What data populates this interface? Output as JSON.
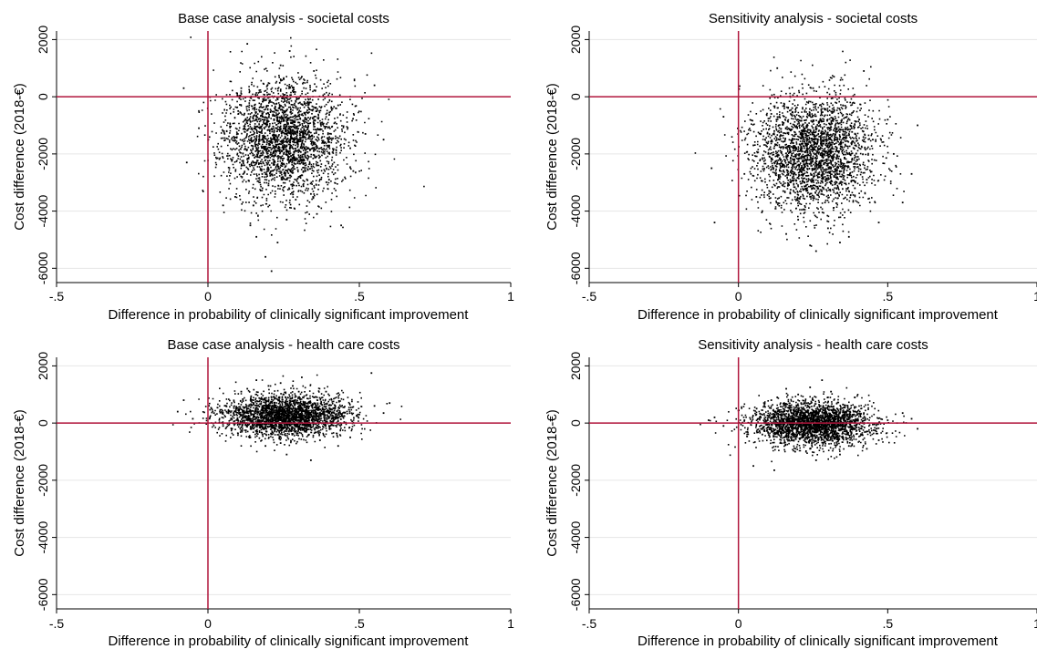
{
  "figure": {
    "panels": [
      {
        "id": "base-societal",
        "title": "Base case analysis - societal costs",
        "xlabel": "Difference in probability of clinically significant improvement",
        "ylabel": "Cost difference (2018-€)",
        "x_ticks": [
          -0.5,
          0,
          0.5,
          1
        ],
        "x_tick_labels": [
          "-.5",
          "0",
          ".5",
          "1"
        ],
        "y_ticks": [
          2000,
          0,
          -2000,
          -4000,
          -6000
        ],
        "y_tick_labels": [
          "2000",
          "0",
          "-2000",
          "-4000",
          "-6000"
        ]
      },
      {
        "id": "sens-societal",
        "title": "Sensitivity analysis - societal costs",
        "xlabel": "Difference in probability of clinically significant improvement",
        "ylabel": "Cost difference (2018-€)",
        "x_ticks": [
          -0.5,
          0,
          0.5,
          1
        ],
        "x_tick_labels": [
          "-.5",
          "0",
          ".5",
          "1"
        ],
        "y_ticks": [
          2000,
          0,
          -2000,
          -4000,
          -6000
        ],
        "y_tick_labels": [
          "2000",
          "0",
          "-2000",
          "-4000",
          "-6000"
        ]
      },
      {
        "id": "base-health",
        "title": "Base case analysis - health care costs",
        "xlabel": "Difference in probability of clinically significant improvement",
        "ylabel": "Cost difference (2018-€)",
        "x_ticks": [
          -0.5,
          0,
          0.5,
          1
        ],
        "x_tick_labels": [
          "-.5",
          "0",
          ".5",
          "1"
        ],
        "y_ticks": [
          2000,
          0,
          -2000,
          -4000,
          -6000
        ],
        "y_tick_labels": [
          "2000",
          "0",
          "-2000",
          "-4000",
          "-6000"
        ]
      },
      {
        "id": "sens-health",
        "title": "Sensitivity analysis - health care costs",
        "xlabel": "Difference in probability of clinically significant improvement",
        "ylabel": "Cost difference (2018-€)",
        "x_ticks": [
          -0.5,
          0,
          0.5,
          1
        ],
        "x_tick_labels": [
          "-.5",
          "0",
          ".5",
          "1"
        ],
        "y_ticks": [
          2000,
          0,
          -2000,
          -4000,
          -6000
        ],
        "y_tick_labels": [
          "2000",
          "0",
          "-2000",
          "-4000",
          "-6000"
        ]
      }
    ]
  },
  "colors": {
    "points": "#000000",
    "reference_lines": "#b0163c",
    "grid": "#e6e6e6",
    "axis": "#000000"
  },
  "chart_data": [
    {
      "type": "scatter",
      "title": "Base case analysis - societal costs",
      "xlabel": "Difference in probability of clinically significant improvement",
      "ylabel": "Cost difference (2018-€)",
      "xlim": [
        -0.5,
        1
      ],
      "ylim": [
        -6500,
        2300
      ],
      "grid": true,
      "reference_lines": {
        "x": 0,
        "y": 0
      },
      "points": [
        [
          0.05,
          -1200
        ],
        [
          0.17,
          -1400
        ],
        [
          0.18,
          -700
        ],
        [
          0.25,
          -1800
        ],
        [
          0.27,
          -2000
        ],
        [
          0.29,
          -1300
        ],
        [
          0.12,
          -2400
        ],
        [
          0.32,
          -2600
        ],
        [
          0.38,
          -1600
        ],
        [
          0.2,
          -3100
        ],
        [
          0.34,
          -3400
        ],
        [
          0.22,
          -400
        ],
        [
          0.28,
          200
        ],
        [
          0.15,
          -3800
        ],
        [
          0.42,
          -900
        ],
        [
          0.08,
          -2200
        ],
        [
          0.47,
          -1800
        ],
        [
          -0.03,
          -1100
        ],
        [
          0.26,
          -4300
        ],
        [
          0.36,
          -4100
        ],
        [
          0.14,
          -4500
        ],
        [
          0.11,
          300
        ],
        [
          0.31,
          700
        ],
        [
          0.52,
          -1300
        ],
        [
          0.4,
          -2900
        ],
        [
          0.23,
          -5100
        ],
        [
          0.19,
          -5600
        ],
        [
          0.21,
          -6100
        ],
        [
          0.27,
          1600
        ],
        [
          0.13,
          1850
        ],
        [
          0.05,
          -3800
        ],
        [
          -0.08,
          300
        ],
        [
          -0.07,
          -2300
        ],
        [
          0.55,
          400
        ],
        [
          0.58,
          -1500
        ],
        [
          0.44,
          -4500
        ],
        [
          0.16,
          -4900
        ],
        [
          0.09,
          -3500
        ],
        [
          0.35,
          900
        ],
        [
          0.24,
          1100
        ],
        [
          0.3,
          -2800
        ],
        [
          0.33,
          -200
        ],
        [
          0.1,
          -500
        ],
        [
          0.37,
          -2100
        ],
        [
          0.2,
          -2500
        ],
        [
          0.26,
          -700
        ],
        [
          0.29,
          -3600
        ],
        [
          0.18,
          -3200
        ],
        [
          0.43,
          -300
        ],
        [
          0.48,
          -2600
        ]
      ]
    },
    {
      "type": "scatter",
      "title": "Sensitivity analysis - societal costs",
      "xlabel": "Difference in probability of clinically significant improvement",
      "ylabel": "Cost difference (2018-€)",
      "xlim": [
        -0.5,
        1
      ],
      "ylim": [
        -6500,
        2300
      ],
      "grid": true,
      "reference_lines": {
        "x": 0,
        "y": 0
      },
      "points": [
        [
          0.23,
          -1800
        ],
        [
          0.26,
          -2000
        ],
        [
          0.2,
          -1500
        ],
        [
          0.3,
          -1700
        ],
        [
          0.17,
          -2300
        ],
        [
          0.33,
          -2600
        ],
        [
          0.12,
          -1200
        ],
        [
          0.36,
          -1400
        ],
        [
          0.27,
          -900
        ],
        [
          0.22,
          -3000
        ],
        [
          0.4,
          -2100
        ],
        [
          0.15,
          -3300
        ],
        [
          0.29,
          -3700
        ],
        [
          0.1,
          -2000
        ],
        [
          0.45,
          -1500
        ],
        [
          0.35,
          -300
        ],
        [
          0.18,
          -400
        ],
        [
          0.25,
          300
        ],
        [
          0.32,
          700
        ],
        [
          0.42,
          900
        ],
        [
          0.13,
          1000
        ],
        [
          0.2,
          -4300
        ],
        [
          0.3,
          -4600
        ],
        [
          0.24,
          -5200
        ],
        [
          0.37,
          -4900
        ],
        [
          0.06,
          -3500
        ],
        [
          0.02,
          -2700
        ],
        [
          -0.05,
          -700
        ],
        [
          -0.08,
          -4400
        ],
        [
          -0.09,
          -2500
        ],
        [
          0.5,
          -800
        ],
        [
          0.55,
          -3700
        ],
        [
          0.58,
          -2700
        ],
        [
          0.6,
          -1000
        ],
        [
          0.47,
          -4400
        ],
        [
          0.08,
          -4000
        ],
        [
          0.16,
          -4800
        ],
        [
          0.26,
          -5400
        ],
        [
          0.34,
          -5100
        ],
        [
          0.21,
          -2600
        ],
        [
          0.28,
          -1300
        ],
        [
          0.19,
          -700
        ],
        [
          0.39,
          -3200
        ],
        [
          0.14,
          -2800
        ],
        [
          0.31,
          -2300
        ],
        [
          0.24,
          -3500
        ],
        [
          0.43,
          -2900
        ],
        [
          0.11,
          -600
        ],
        [
          0.05,
          -1700
        ],
        [
          0.52,
          -2000
        ]
      ]
    },
    {
      "type": "scatter",
      "title": "Base case analysis - health care costs",
      "xlabel": "Difference in probability of clinically significant improvement",
      "ylabel": "Cost difference (2018-€)",
      "xlim": [
        -0.5,
        1
      ],
      "ylim": [
        -6500,
        2300
      ],
      "grid": true,
      "reference_lines": {
        "x": 0,
        "y": 0
      },
      "points": [
        [
          0.23,
          300
        ],
        [
          0.26,
          200
        ],
        [
          0.2,
          500
        ],
        [
          0.3,
          400
        ],
        [
          0.17,
          100
        ],
        [
          0.33,
          600
        ],
        [
          0.12,
          250
        ],
        [
          0.36,
          150
        ],
        [
          0.27,
          700
        ],
        [
          0.22,
          -200
        ],
        [
          0.4,
          350
        ],
        [
          0.15,
          800
        ],
        [
          0.29,
          -100
        ],
        [
          0.1,
          450
        ],
        [
          0.45,
          250
        ],
        [
          0.35,
          900
        ],
        [
          0.18,
          -400
        ],
        [
          0.25,
          1000
        ],
        [
          0.32,
          -300
        ],
        [
          0.42,
          550
        ],
        [
          0.13,
          1200
        ],
        [
          0.2,
          1300
        ],
        [
          0.3,
          1100
        ],
        [
          0.24,
          -700
        ],
        [
          0.37,
          -600
        ],
        [
          0.06,
          600
        ],
        [
          0.02,
          350
        ],
        [
          -0.05,
          150
        ],
        [
          -0.08,
          800
        ],
        [
          -0.1,
          400
        ],
        [
          0.5,
          300
        ],
        [
          0.55,
          600
        ],
        [
          0.58,
          350
        ],
        [
          0.6,
          700
        ],
        [
          0.47,
          -500
        ],
        [
          0.08,
          -200
        ],
        [
          0.16,
          1500
        ],
        [
          0.26,
          -1100
        ],
        [
          0.34,
          -1300
        ],
        [
          0.21,
          900
        ],
        [
          0.28,
          1300
        ],
        [
          0.19,
          -800
        ],
        [
          0.39,
          1100
        ],
        [
          0.14,
          -500
        ],
        [
          0.31,
          1600
        ],
        [
          0.24,
          1400
        ],
        [
          0.43,
          -800
        ],
        [
          0.11,
          1100
        ],
        [
          0.05,
          -100
        ],
        [
          0.54,
          1750
        ]
      ]
    },
    {
      "type": "scatter",
      "title": "Sensitivity analysis - health care costs",
      "xlabel": "Difference in probability of clinically significant improvement",
      "ylabel": "Cost difference (2018-€)",
      "xlim": [
        -0.5,
        1
      ],
      "ylim": [
        -6500,
        2300
      ],
      "grid": true,
      "reference_lines": {
        "x": 0,
        "y": 0
      },
      "points": [
        [
          0.23,
          0
        ],
        [
          0.26,
          100
        ],
        [
          0.2,
          -150
        ],
        [
          0.3,
          200
        ],
        [
          0.17,
          -50
        ],
        [
          0.33,
          300
        ],
        [
          0.12,
          -250
        ],
        [
          0.36,
          -100
        ],
        [
          0.27,
          450
        ],
        [
          0.22,
          -400
        ],
        [
          0.4,
          150
        ],
        [
          0.15,
          500
        ],
        [
          0.29,
          -300
        ],
        [
          0.1,
          250
        ],
        [
          0.45,
          -50
        ],
        [
          0.35,
          650
        ],
        [
          0.18,
          -600
        ],
        [
          0.25,
          800
        ],
        [
          0.32,
          -550
        ],
        [
          0.42,
          350
        ],
        [
          0.13,
          900
        ],
        [
          0.2,
          1000
        ],
        [
          0.3,
          900
        ],
        [
          0.24,
          -900
        ],
        [
          0.37,
          -800
        ],
        [
          0.06,
          300
        ],
        [
          0.02,
          100
        ],
        [
          -0.05,
          -100
        ],
        [
          -0.08,
          200
        ],
        [
          -0.1,
          100
        ],
        [
          0.5,
          100
        ],
        [
          0.55,
          350
        ],
        [
          0.58,
          150
        ],
        [
          0.6,
          -200
        ],
        [
          0.47,
          -600
        ],
        [
          0.08,
          -400
        ],
        [
          0.16,
          1200
        ],
        [
          0.26,
          -1300
        ],
        [
          0.34,
          -1100
        ],
        [
          0.21,
          700
        ],
        [
          0.28,
          1500
        ],
        [
          0.19,
          -1000
        ],
        [
          0.39,
          900
        ],
        [
          0.14,
          -700
        ],
        [
          0.31,
          1100
        ],
        [
          0.24,
          1250
        ],
        [
          0.43,
          -900
        ],
        [
          0.11,
          800
        ],
        [
          0.05,
          -1500
        ],
        [
          0.12,
          -1650
        ]
      ]
    }
  ]
}
